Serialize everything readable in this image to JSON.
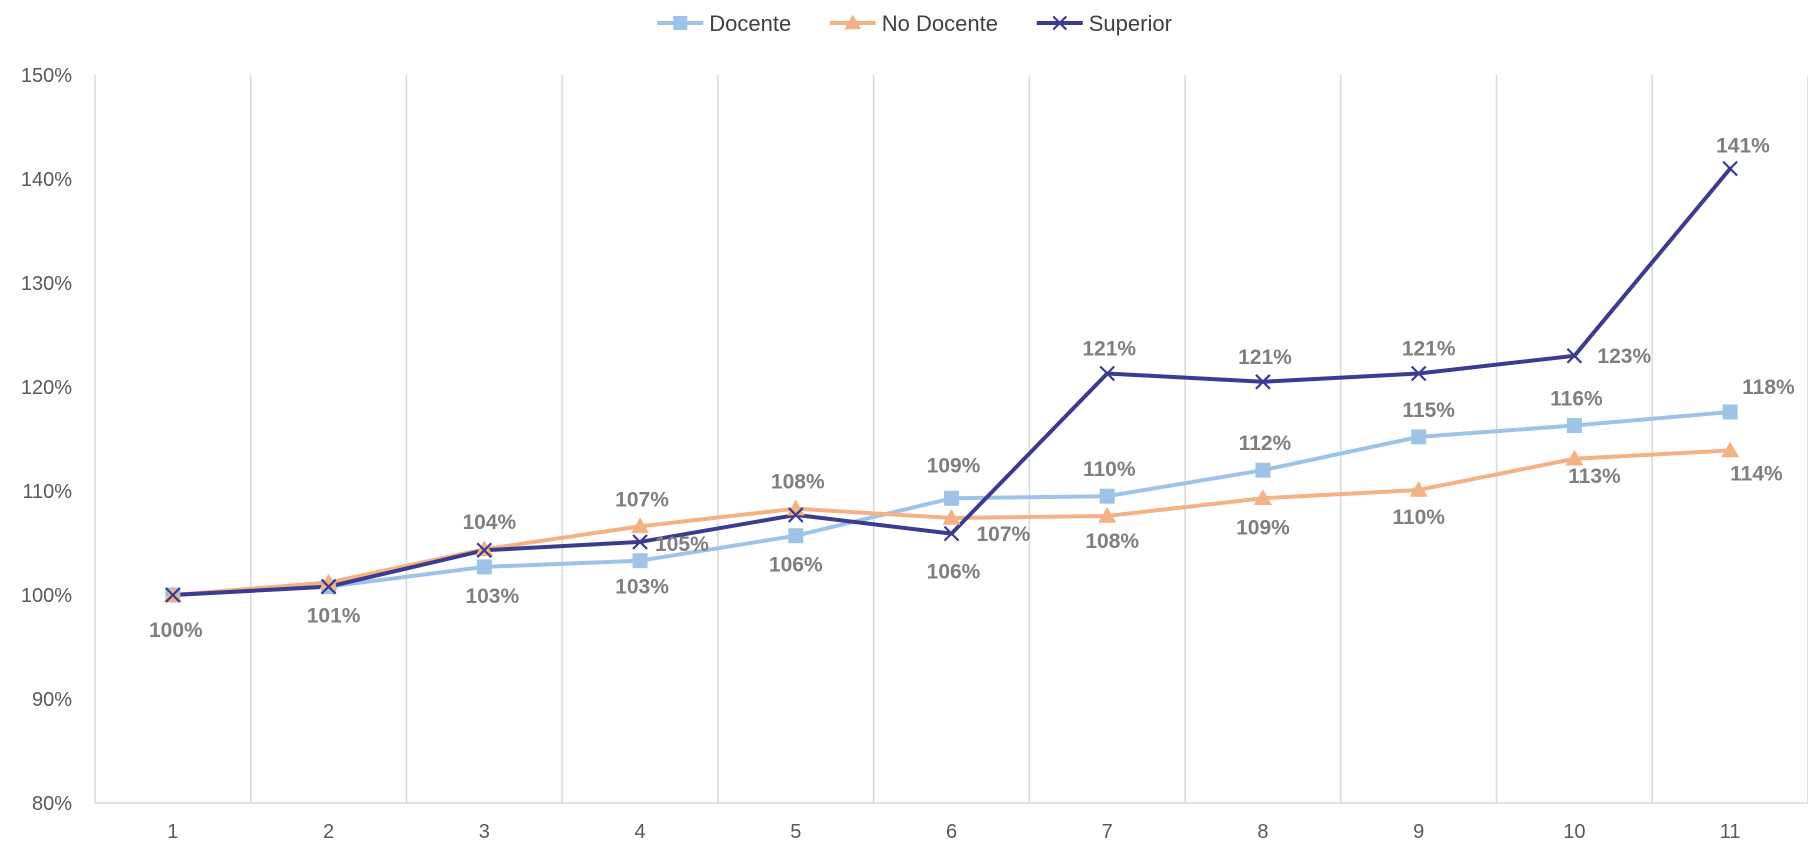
{
  "chart_data": {
    "type": "line",
    "title": "",
    "xlabel": "",
    "ylabel": "",
    "categories": [
      "1",
      "2",
      "3",
      "4",
      "5",
      "6",
      "7",
      "8",
      "9",
      "10",
      "11"
    ],
    "ylim": [
      0.8,
      1.5
    ],
    "y_ticks": [
      0.8,
      0.9,
      1.0,
      1.1,
      1.2,
      1.3,
      1.4,
      1.5
    ],
    "y_tick_labels": [
      "80%",
      "90%",
      "100%",
      "110%",
      "120%",
      "130%",
      "140%",
      "150%"
    ],
    "grid": "vertical",
    "legend_position": "top-center",
    "series": [
      {
        "name": "Docente",
        "color": "#9dc3e6",
        "marker": "square",
        "values": [
          1.0,
          1.008,
          1.027,
          1.033,
          1.057,
          1.093,
          1.095,
          1.12,
          1.152,
          1.163,
          1.176
        ],
        "labels": [
          "",
          "",
          "103%",
          "103%",
          "106%",
          "109%",
          "110%",
          "112%",
          "115%",
          "116%",
          "118%"
        ]
      },
      {
        "name": "No Docente",
        "color": "#f4b183",
        "marker": "triangle",
        "values": [
          1.0,
          1.012,
          1.044,
          1.066,
          1.083,
          1.074,
          1.076,
          1.093,
          1.101,
          1.131,
          1.139
        ],
        "labels": [
          "",
          "",
          "104%",
          "107%",
          "108%",
          "107%",
          "108%",
          "109%",
          "110%",
          "113%",
          "114%"
        ]
      },
      {
        "name": "Superior",
        "color": "#3b3b8f",
        "marker": "x",
        "values": [
          1.0,
          1.008,
          1.043,
          1.051,
          1.077,
          1.059,
          1.213,
          1.205,
          1.213,
          1.23,
          1.41
        ],
        "labels": [
          "100%",
          "101%",
          "",
          "105%",
          "",
          "106%",
          "121%",
          "121%",
          "121%",
          "123%",
          "141%"
        ]
      }
    ]
  }
}
